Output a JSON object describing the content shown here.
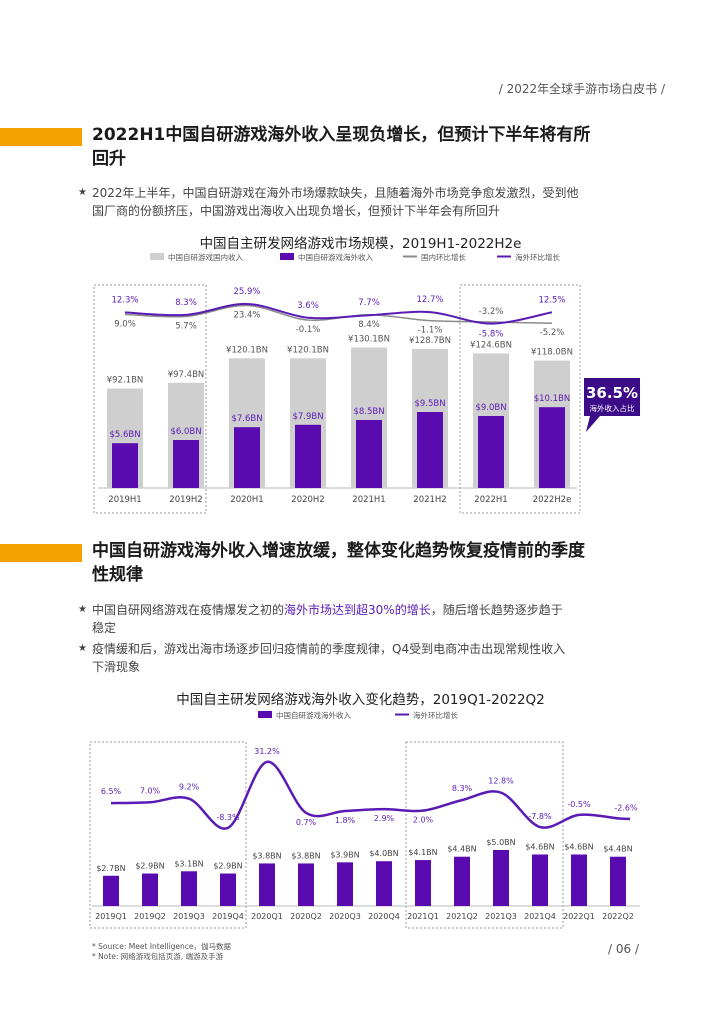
{
  "header": {
    "doc_title": "/ 2022年全球手游市场白皮书 /"
  },
  "section1": {
    "title_line1": "2022H1中国自研游戏海外收入呈现负增长，但预计下半年将有所",
    "title_line2": "回升",
    "bullet1_line1": "2022年上半年，中国自研游戏在海外市场爆款缺失，且随着海外市场竞争愈发激烈，受到他",
    "bullet1_line2": "国厂商的份额挤压，中国游戏出海收入出现负增长，但预计下半年会有所回升"
  },
  "section2": {
    "title_line1": "中国自研游戏海外收入增速放缓，整体变化趋势恢复疫情前的季度",
    "title_line2": "性规律",
    "bullet1_pre": "中国自研网络游戏在疫情爆发之初的",
    "bullet1_hl": "海外市场达到超30%的增长",
    "bullet1_post": "，随后增长趋势逐步趋于",
    "bullet1_line2": "稳定",
    "bullet2_line1": "疫情缓和后，游戏出海市场逐步回归疫情前的季度规律，Q4受到电商冲击出现常规性收入",
    "bullet2_line2": "下滑现象"
  },
  "chart_data": [
    {
      "type": "bar",
      "title": "中国自主研发网络游戏市场规模，2019H1-2022H2e",
      "legend": [
        "中国自研游戏国内收入",
        "中国自研游戏海外收入",
        "国内环比增长",
        "海外环比增长"
      ],
      "categories": [
        "2019H1",
        "2019H2",
        "2020H1",
        "2020H2",
        "2021H1",
        "2021H2",
        "2022H1",
        "2022H2e"
      ],
      "series": [
        {
          "name": "中国自研游戏国内收入",
          "values": [
            92.1,
            97.4,
            120.1,
            120.1,
            130.1,
            128.7,
            124.6,
            118.0
          ],
          "labels": [
            "¥92.1BN",
            "¥97.4BN",
            "¥120.1BN",
            "¥120.1BN",
            "¥130.1BN",
            "¥128.7BN",
            "¥124.6BN",
            "¥118.0BN"
          ]
        },
        {
          "name": "中国自研游戏海外收入",
          "values": [
            5.6,
            6.0,
            7.6,
            7.9,
            8.5,
            9.5,
            9.0,
            10.1
          ],
          "labels": [
            "$5.6BN",
            "$6.0BN",
            "$7.6BN",
            "$7.9BN",
            "$8.5BN",
            "$9.5BN",
            "$9.0BN",
            "$10.1BN"
          ]
        },
        {
          "name": "国内环比增长",
          "values": [
            9.0,
            5.7,
            23.4,
            -0.1,
            8.4,
            -1.1,
            -3.2,
            -5.2
          ],
          "labels": [
            "9.0%",
            "5.7%",
            "23.4%",
            "-0.1%",
            "8.4%",
            "-1.1%",
            "-3.2%",
            "-5.2%"
          ]
        },
        {
          "name": "海外环比增长",
          "values": [
            12.3,
            8.3,
            25.9,
            3.6,
            7.7,
            12.7,
            -5.8,
            12.5
          ],
          "labels": [
            "12.3%",
            "8.3%",
            "25.9%",
            "3.6%",
            "7.7%",
            "12.7%",
            "-5.8%",
            "12.5%"
          ]
        }
      ],
      "callout": {
        "value": "36.5%",
        "label": "海外收入占比"
      },
      "colors": {
        "domestic": "#cfcfcf",
        "overseas": "#5a0bb0",
        "domestic_line": "#8a8a8a",
        "overseas_line": "#5a1bb5"
      },
      "highlight_groups": [
        [
          "2019H1",
          "2019H2"
        ],
        [
          "2022H1",
          "2022H2e"
        ]
      ]
    },
    {
      "type": "bar",
      "title": "中国自主研发网络游戏海外收入变化趋势，2019Q1-2022Q2",
      "legend": [
        "中国自研游戏海外收入",
        "海外环比增长"
      ],
      "categories": [
        "2019Q1",
        "2019Q2",
        "2019Q3",
        "2019Q4",
        "2020Q1",
        "2020Q2",
        "2020Q3",
        "2020Q4",
        "2021Q1",
        "2021Q2",
        "2021Q3",
        "2021Q4",
        "2022Q1",
        "2022Q2"
      ],
      "series": [
        {
          "name": "中国自研游戏海外收入",
          "values": [
            2.7,
            2.9,
            3.1,
            2.9,
            3.8,
            3.8,
            3.9,
            4.0,
            4.1,
            4.4,
            5.0,
            4.6,
            4.6,
            4.4
          ],
          "labels": [
            "$2.7BN",
            "$2.9BN",
            "$3.1BN",
            "$2.9BN",
            "$3.8BN",
            "$3.8BN",
            "$3.9BN",
            "$4.0BN",
            "$4.1BN",
            "$4.4BN",
            "$5.0BN",
            "$4.6BN",
            "$4.6BN",
            "$4.4BN"
          ]
        },
        {
          "name": "海外环比增长",
          "values": [
            6.5,
            7.0,
            9.2,
            -8.3,
            31.2,
            0.7,
            1.8,
            2.9,
            2.0,
            8.3,
            12.8,
            -7.8,
            -0.5,
            -2.6
          ],
          "labels": [
            "6.5%",
            "7.0%",
            "9.2%",
            "-8.3%",
            "31.2%",
            "0.7%",
            "1.8%",
            "2.9%",
            "2.0%",
            "8.3%",
            "12.8%",
            "-7.8%",
            "-0.5%",
            "-2.6%"
          ]
        }
      ],
      "colors": {
        "bar": "#5a0bb0",
        "line": "#5a1bb5"
      },
      "highlight_groups": [
        [
          "2019Q1",
          "2019Q4"
        ],
        [
          "2021Q1",
          "2021Q4"
        ]
      ]
    }
  ],
  "footer": {
    "source": "* Source: Meet Intelligence，伽马数据",
    "note": "* Note: 网络游戏包括页游, 端游及手游",
    "page": "/ 06 /"
  }
}
